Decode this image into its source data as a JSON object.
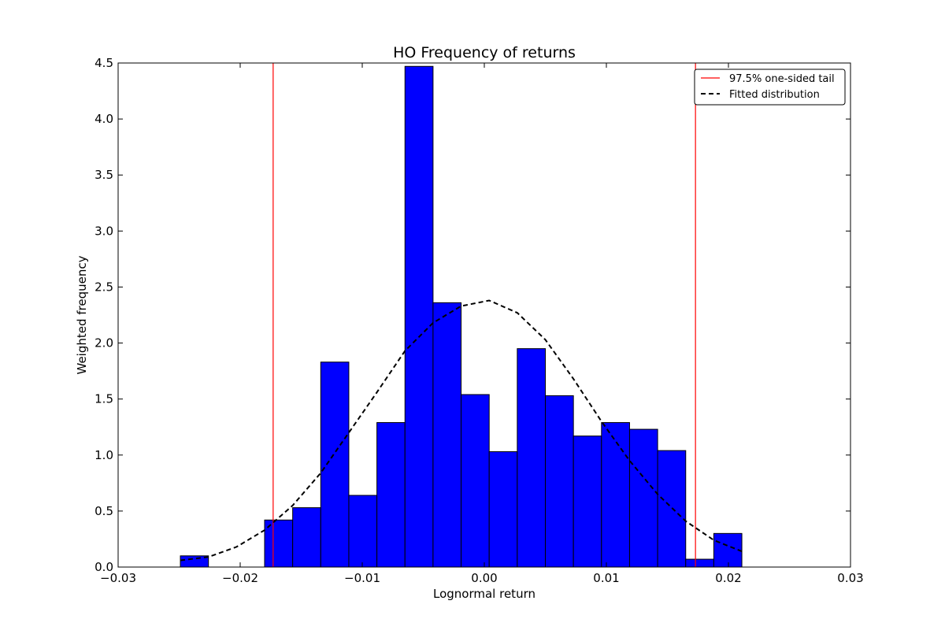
{
  "chart_data": {
    "type": "bar",
    "title": "HO Frequency of returns",
    "xlabel": "Lognormal return",
    "ylabel": "Weighted frequency",
    "xlim": [
      -0.03,
      0.03
    ],
    "ylim": [
      0,
      4.5
    ],
    "xticks": [
      -0.03,
      -0.02,
      -0.01,
      0.0,
      0.01,
      0.02,
      0.03
    ],
    "xtick_labels": [
      "−0.03",
      "−0.02",
      "−0.01",
      "0.00",
      "0.01",
      "0.02",
      "0.03"
    ],
    "yticks": [
      0,
      0.5,
      1.0,
      1.5,
      2.0,
      2.5,
      3.0,
      3.5,
      4.0,
      4.5
    ],
    "ytick_labels": [
      "0.0",
      "0.5",
      "1.0",
      "1.5",
      "2.0",
      "2.5",
      "3.0",
      "3.5",
      "4.0",
      "4.5"
    ],
    "grid": false,
    "legend_position": "top-right",
    "bar_color": "#0000ff",
    "histogram": {
      "bin_edges": [
        -0.0249,
        -0.0226,
        -0.0203,
        -0.018,
        -0.0157,
        -0.0134,
        -0.0111,
        -0.0088,
        -0.0065,
        -0.0042,
        -0.0019,
        0.0004,
        0.0027,
        0.005,
        0.0073,
        0.0096,
        0.0119,
        0.0142,
        0.0165,
        0.0188,
        0.0211
      ],
      "values": [
        0.1,
        0.0,
        0.0,
        0.42,
        0.53,
        1.83,
        0.64,
        1.29,
        4.47,
        2.36,
        1.54,
        1.03,
        1.95,
        1.53,
        1.17,
        1.29,
        1.23,
        1.04,
        0.07,
        0.3
      ]
    },
    "series": [
      {
        "name": "97.5% one-sided tail",
        "type": "vline",
        "color": "#ff0000",
        "x": [
          -0.0173,
          0.0173
        ]
      },
      {
        "name": "Fitted distribution",
        "type": "line",
        "style": "dashed",
        "color": "#000000",
        "x": [
          -0.0249,
          -0.0226,
          -0.0203,
          -0.018,
          -0.0157,
          -0.0134,
          -0.0111,
          -0.0088,
          -0.0065,
          -0.0042,
          -0.0019,
          0.0004,
          0.0027,
          0.005,
          0.0073,
          0.0096,
          0.0119,
          0.0142,
          0.0165,
          0.0188,
          0.0211
        ],
        "y": [
          0.06,
          0.09,
          0.18,
          0.33,
          0.55,
          0.84,
          1.2,
          1.56,
          1.93,
          2.18,
          2.33,
          2.38,
          2.27,
          2.03,
          1.68,
          1.3,
          0.95,
          0.65,
          0.41,
          0.24,
          0.14
        ]
      }
    ]
  }
}
